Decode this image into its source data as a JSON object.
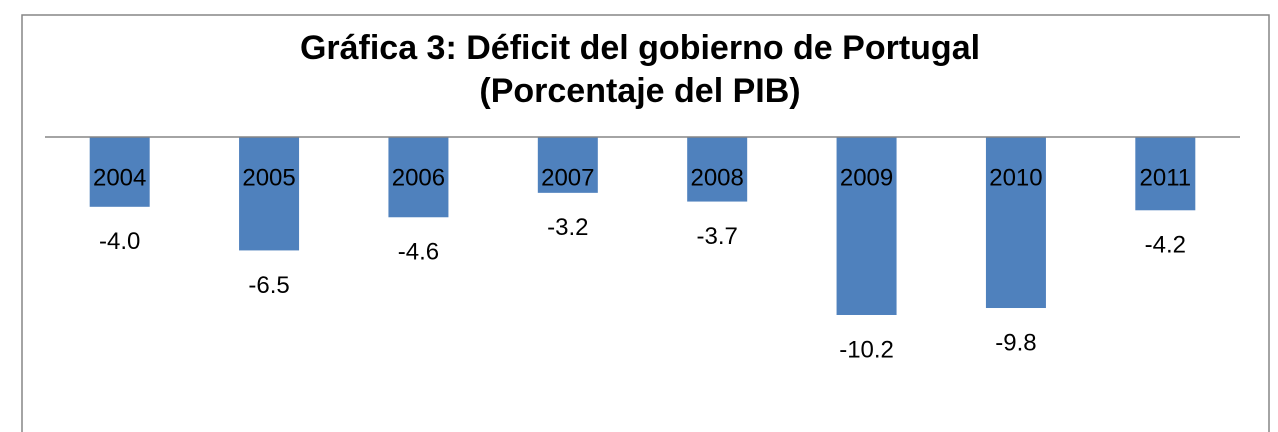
{
  "chart_data": {
    "type": "bar",
    "title": "Gráfica 3: Déficit del gobierno de Portugal",
    "subtitle": "(Porcentaje del PIB)",
    "categories": [
      "2004",
      "2005",
      "2006",
      "2007",
      "2008",
      "2009",
      "2010",
      "2011"
    ],
    "values": [
      -4,
      -6.5,
      -4.6,
      -3.2,
      -3.7,
      -10.2,
      -9.8,
      -4.2
    ],
    "value_labels": [
      "-4.0",
      "-6.5",
      "-4.6",
      "-3.2",
      "-3.7",
      "-10.2",
      "-9.8",
      "-4.2"
    ],
    "color": "#4f81bd"
  }
}
